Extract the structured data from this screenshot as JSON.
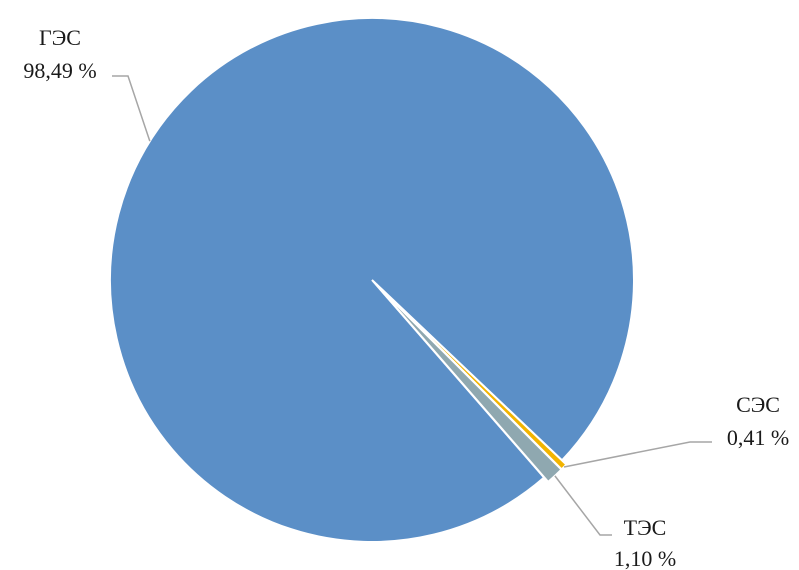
{
  "chart_data": {
    "type": "pie",
    "title": "",
    "slices": [
      {
        "name": "ГЭС",
        "value": 98.49,
        "label": "98,49 %",
        "color": "#5b8fc7"
      },
      {
        "name": "СЭС",
        "value": 0.41,
        "label": "0,41 %",
        "color": "#f2b400"
      },
      {
        "name": "ТЭС",
        "value": 1.1,
        "label": "1,10 %",
        "color": "#8fa8b0"
      }
    ],
    "legend": "none",
    "leader_line_color": "#a6a6a6"
  }
}
